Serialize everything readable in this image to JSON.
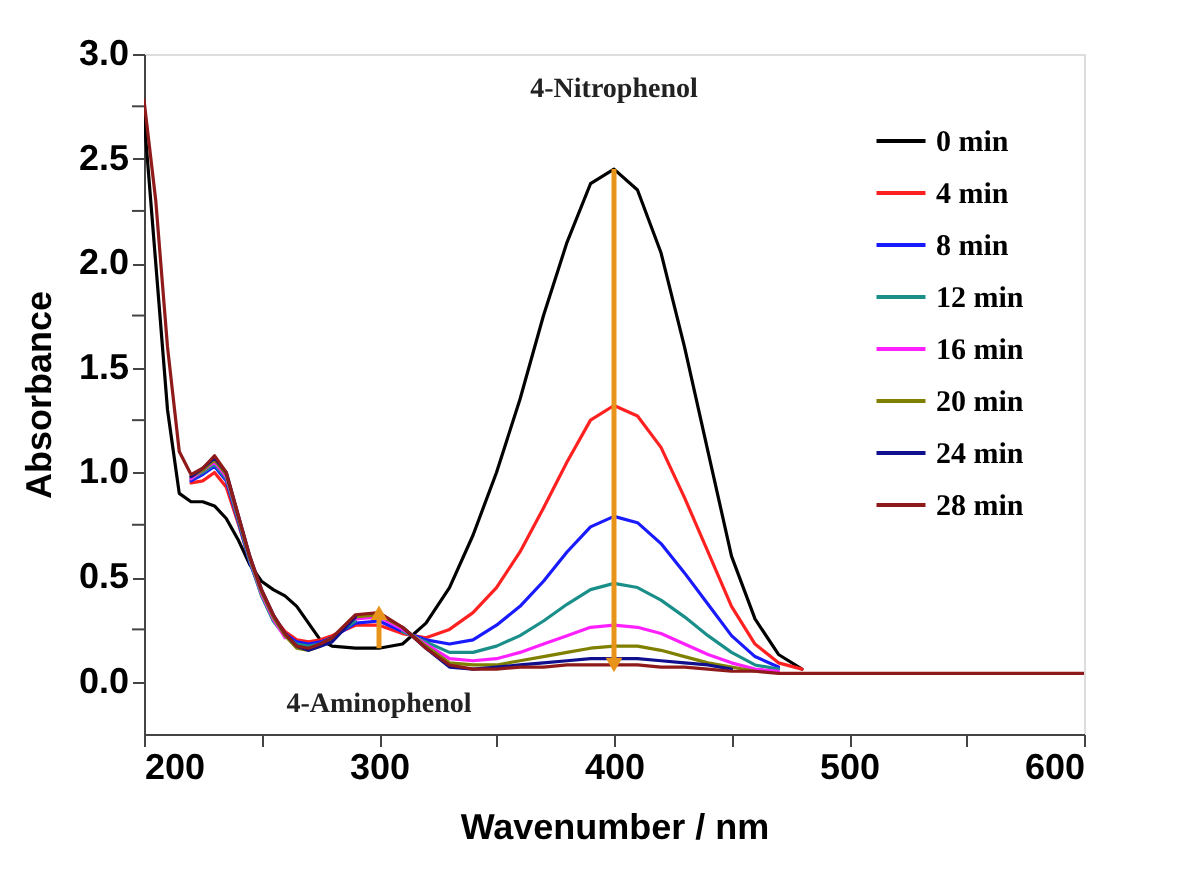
{
  "chart_data": {
    "type": "line",
    "xlabel": "Wavenumber / nm",
    "ylabel": "Absorbance",
    "x": [
      200,
      205,
      210,
      215,
      220,
      225,
      230,
      235,
      240,
      245,
      250,
      255,
      260,
      265,
      270,
      275,
      280,
      290,
      300,
      310,
      320,
      330,
      340,
      350,
      360,
      370,
      380,
      390,
      400,
      410,
      420,
      430,
      440,
      450,
      460,
      470,
      480,
      500,
      550,
      600
    ],
    "series": [
      {
        "name": "0 min",
        "color": "#000000",
        "values": [
          2.7,
          2.0,
          1.3,
          0.9,
          0.86,
          0.86,
          0.84,
          0.78,
          0.68,
          0.56,
          0.48,
          0.44,
          0.41,
          0.36,
          0.28,
          0.2,
          0.17,
          0.16,
          0.16,
          0.18,
          0.28,
          0.45,
          0.7,
          1.0,
          1.35,
          1.75,
          2.1,
          2.38,
          2.45,
          2.35,
          2.05,
          1.6,
          1.1,
          0.6,
          0.3,
          0.13,
          0.06,
          null,
          null,
          null
        ]
      },
      {
        "name": "4 min",
        "color": "#ff2020",
        "values": [
          null,
          null,
          null,
          null,
          0.95,
          0.96,
          1.0,
          0.93,
          0.76,
          0.58,
          0.43,
          0.31,
          0.24,
          0.2,
          0.19,
          0.2,
          0.22,
          0.27,
          0.27,
          0.23,
          0.21,
          0.25,
          0.33,
          0.45,
          0.62,
          0.83,
          1.05,
          1.25,
          1.32,
          1.27,
          1.12,
          0.88,
          0.62,
          0.36,
          0.18,
          0.09,
          0.06,
          null,
          null,
          null
        ]
      },
      {
        "name": "8 min",
        "color": "#1a1aff",
        "values": [
          null,
          null,
          null,
          null,
          0.96,
          0.99,
          1.03,
          0.96,
          0.77,
          0.57,
          0.42,
          0.3,
          0.23,
          0.19,
          0.18,
          0.19,
          0.21,
          0.28,
          0.29,
          0.24,
          0.2,
          0.18,
          0.2,
          0.27,
          0.36,
          0.48,
          0.62,
          0.74,
          0.79,
          0.76,
          0.66,
          0.52,
          0.37,
          0.22,
          0.12,
          0.07,
          null,
          null,
          null,
          null
        ]
      },
      {
        "name": "12 min",
        "color": "#1a8f8a",
        "values": [
          null,
          null,
          null,
          null,
          0.97,
          1.0,
          1.04,
          0.97,
          0.78,
          0.58,
          0.41,
          0.29,
          0.22,
          0.18,
          0.17,
          0.18,
          0.21,
          0.29,
          null,
          0.24,
          0.19,
          0.14,
          0.14,
          0.17,
          0.22,
          0.29,
          0.37,
          0.44,
          0.47,
          0.45,
          0.39,
          0.31,
          0.22,
          0.14,
          0.08,
          0.06,
          null,
          null,
          null,
          null
        ]
      },
      {
        "name": "16 min",
        "color": "#ff20ff",
        "values": [
          null,
          null,
          null,
          null,
          0.97,
          1.01,
          1.05,
          0.98,
          0.79,
          0.59,
          0.42,
          0.3,
          0.21,
          null,
          null,
          null,
          null,
          0.3,
          0.31,
          0.25,
          0.18,
          0.11,
          0.1,
          0.11,
          0.14,
          0.18,
          0.22,
          0.26,
          0.27,
          0.26,
          0.23,
          0.18,
          0.13,
          0.09,
          0.06,
          0.05,
          null,
          null,
          null,
          null
        ]
      },
      {
        "name": "20 min",
        "color": "#808000",
        "values": [
          null,
          null,
          null,
          null,
          0.98,
          1.01,
          1.06,
          0.99,
          0.79,
          0.59,
          0.43,
          0.31,
          0.22,
          0.16,
          0.15,
          0.17,
          0.2,
          0.31,
          0.32,
          0.26,
          0.17,
          0.09,
          0.08,
          0.08,
          0.1,
          0.12,
          0.14,
          0.16,
          0.17,
          0.17,
          0.15,
          0.12,
          0.09,
          0.07,
          0.05,
          null,
          null,
          null,
          null,
          null
        ]
      },
      {
        "name": "24 min",
        "color": "#10108f",
        "values": [
          null,
          null,
          null,
          null,
          0.98,
          1.02,
          1.07,
          1.0,
          0.8,
          0.6,
          0.44,
          0.32,
          0.23,
          0.17,
          0.15,
          0.17,
          0.19,
          0.31,
          null,
          0.26,
          0.16,
          0.07,
          0.06,
          0.07,
          0.08,
          0.09,
          0.1,
          0.11,
          0.11,
          0.11,
          0.1,
          0.09,
          0.08,
          0.06,
          null,
          null,
          null,
          null,
          null,
          null
        ]
      },
      {
        "name": "28 min",
        "color": "#8f1a1a",
        "values": [
          2.78,
          2.3,
          1.6,
          1.1,
          0.99,
          1.02,
          1.08,
          1.0,
          0.8,
          0.6,
          0.44,
          0.32,
          0.23,
          0.17,
          0.16,
          0.18,
          0.21,
          0.32,
          0.33,
          0.26,
          0.16,
          0.08,
          0.06,
          0.06,
          0.07,
          0.07,
          0.08,
          0.08,
          0.08,
          0.08,
          0.07,
          0.07,
          0.06,
          0.05,
          0.05,
          0.04,
          0.04,
          0.04,
          0.04,
          0.04
        ]
      }
    ],
    "xlim": [
      200,
      600
    ],
    "xticks": [
      200,
      {
        "value": 250,
        "label": null
      },
      300,
      {
        "value": 350,
        "label": null
      },
      400,
      {
        "value": 450,
        "label": null
      },
      500,
      {
        "value": 550,
        "label": null
      },
      600
    ],
    "ylim": [
      -0.25,
      3.0
    ],
    "yticks": [
      {
        "value": 0,
        "label": "0.0"
      },
      {
        "value": 0.25,
        "label": null
      },
      {
        "value": 0.5,
        "label": "0.5"
      },
      {
        "value": 0.75,
        "label": null
      },
      {
        "value": 1,
        "label": "1.0"
      },
      {
        "value": 1.25,
        "label": null
      },
      {
        "value": 1.5,
        "label": "1.5"
      },
      {
        "value": 1.75,
        "label": null
      },
      {
        "value": 2,
        "label": "2.0"
      },
      {
        "value": 2.25,
        "label": null
      },
      {
        "value": 2.5,
        "label": "2.5"
      },
      {
        "value": 2.75,
        "label": null
      },
      {
        "value": 3,
        "label": "3.0"
      }
    ],
    "annotations": [
      {
        "text": "4-Nitrophenol",
        "x": 400,
        "y": 2.45
      },
      {
        "text": "4-Aminophenol",
        "x": 300,
        "y": 0.16
      }
    ],
    "legend": "top right",
    "grid": false,
    "marker": "none",
    "line_style": "solid"
  }
}
